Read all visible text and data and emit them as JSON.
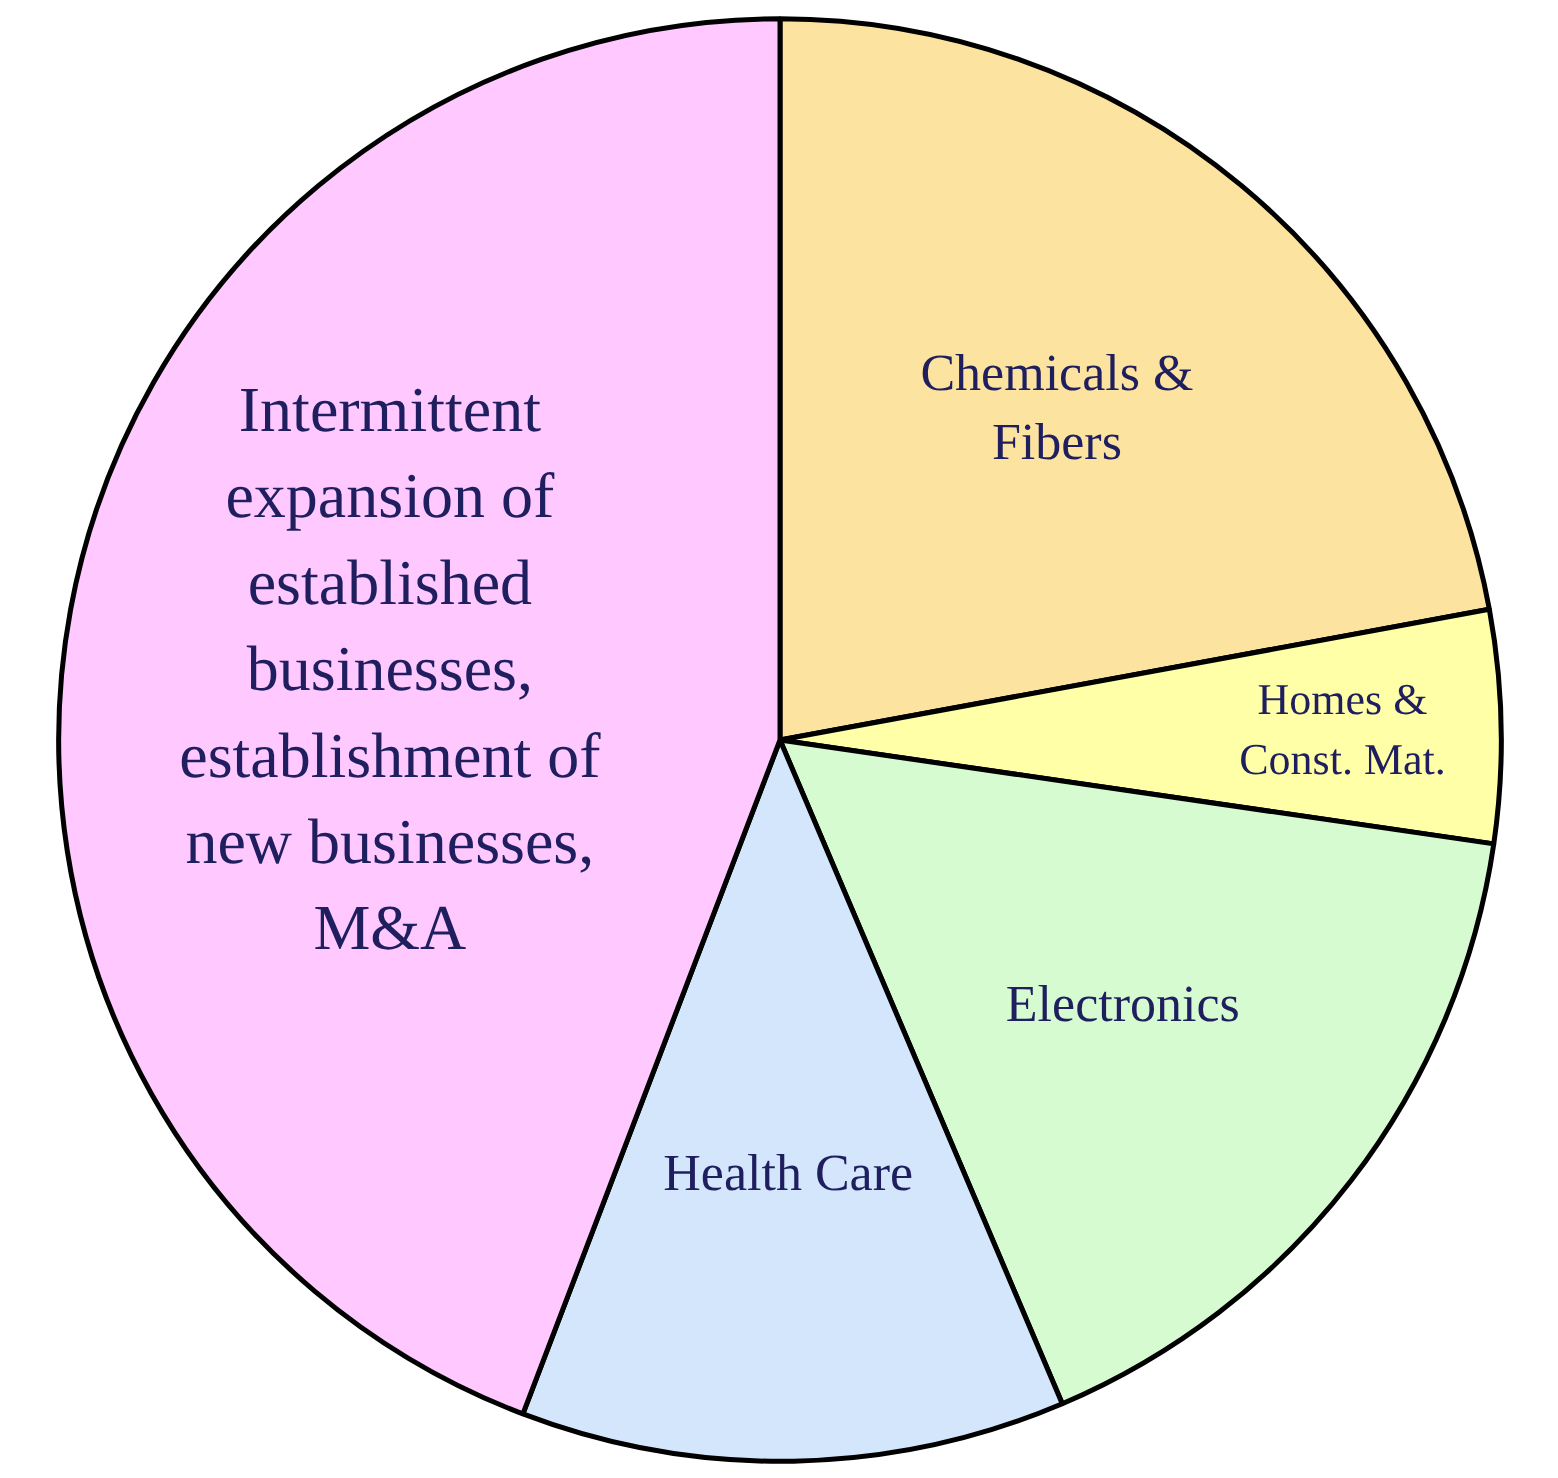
{
  "chart_data": {
    "type": "pie",
    "categories": [
      "Chemicals & Fibers",
      "Homes & Const. Mat.",
      "Electronics",
      "Health Care",
      "Intermittent expansion of established businesses, establishment of new businesses, M&A"
    ],
    "values": [
      22.1,
      5.2,
      16.3,
      12.2,
      44.2
    ],
    "colors": [
      "#fde3a0",
      "#ffffa8",
      "#d6fbd0",
      "#d4e6fb",
      "#ffc8ff"
    ]
  }
}
